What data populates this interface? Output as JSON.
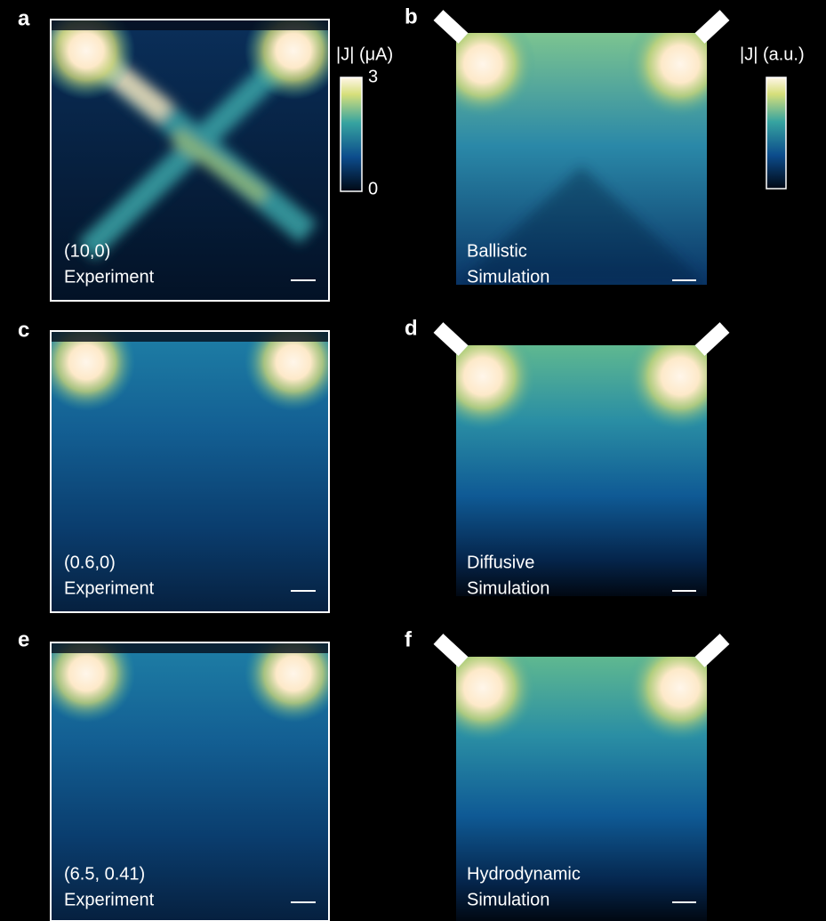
{
  "panels": [
    {
      "letter": "a",
      "line1": "(10,0)",
      "line2": "Experiment"
    },
    {
      "letter": "b",
      "line1": "Ballistic",
      "line2": "Simulation"
    },
    {
      "letter": "c",
      "line1": "(0.6,0)",
      "line2": "Experiment"
    },
    {
      "letter": "d",
      "line1": "Diffusive",
      "line2": "Simulation"
    },
    {
      "letter": "e",
      "line1": "(6.5, 0.41)",
      "line2": "Experiment"
    },
    {
      "letter": "f",
      "line1": "Hydrodynamic",
      "line2": "Simulation"
    }
  ],
  "colorbars": [
    {
      "label": "|J| (μA)",
      "max": "3",
      "min": "0"
    },
    {
      "label": "|J| (a.u.)"
    }
  ]
}
